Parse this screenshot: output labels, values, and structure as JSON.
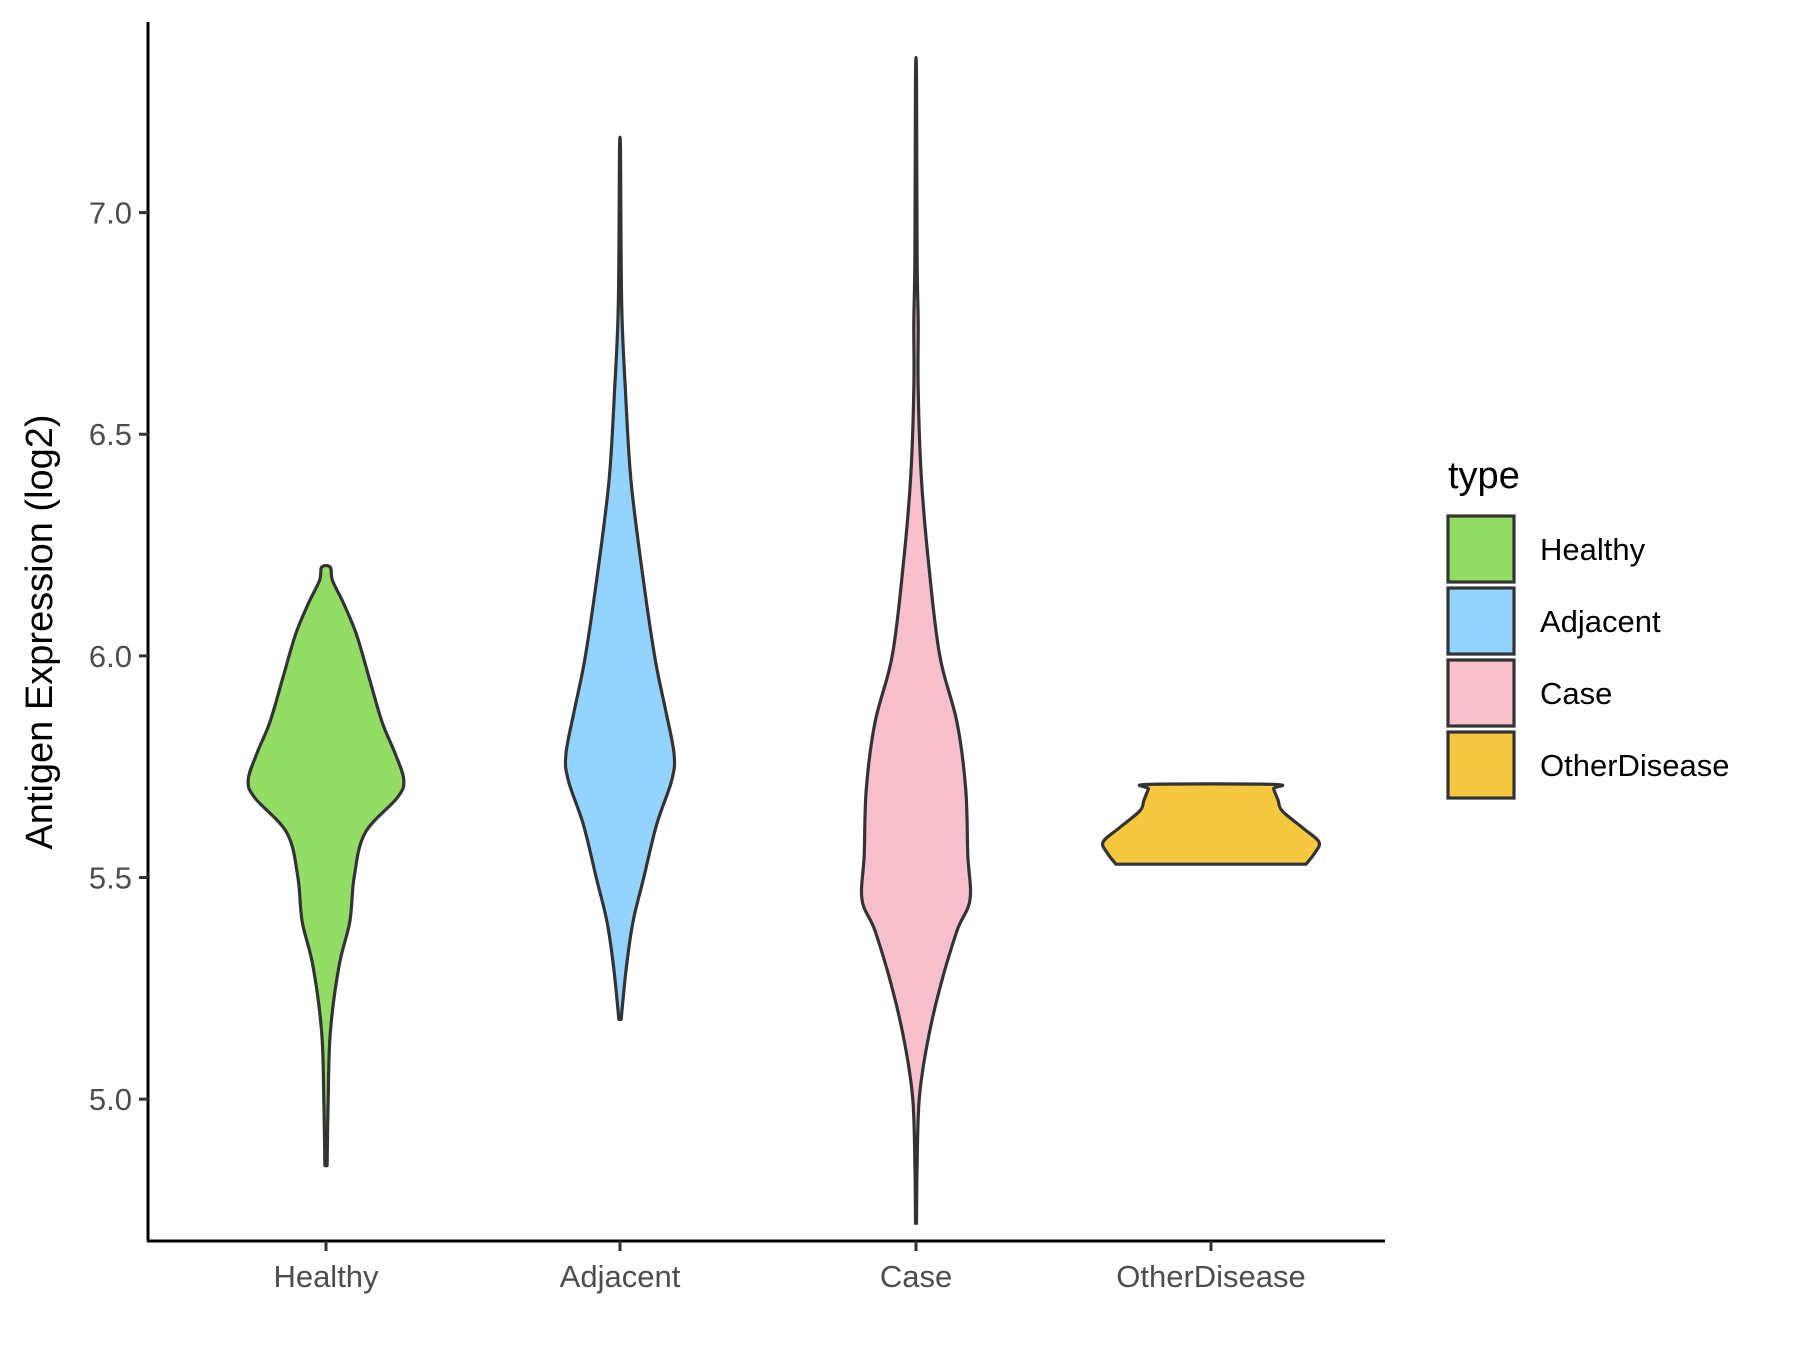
{
  "chart_data": {
    "type": "violin",
    "title": "",
    "xlabel": "",
    "ylabel": "Antigen Expression (log2)",
    "ylim": [
      4.68,
      7.43
    ],
    "yticks": [
      5.0,
      5.5,
      6.0,
      6.5,
      7.0
    ],
    "ytick_labels": [
      "5.0",
      "5.5",
      "6.0",
      "6.5",
      "7.0"
    ],
    "categories": [
      "Healthy",
      "Adjacent",
      "Case",
      "OtherDisease"
    ],
    "legend": {
      "title": "type",
      "position": "right",
      "entries": [
        "Healthy",
        "Adjacent",
        "Case",
        "OtherDisease"
      ]
    },
    "series": [
      {
        "name": "Healthy",
        "color": "#93dd67",
        "min": 4.85,
        "max": 6.2,
        "profile": [
          [
            4.85,
            0.01
          ],
          [
            5.0,
            0.02
          ],
          [
            5.15,
            0.04
          ],
          [
            5.3,
            0.12
          ],
          [
            5.4,
            0.22
          ],
          [
            5.5,
            0.26
          ],
          [
            5.6,
            0.36
          ],
          [
            5.68,
            0.66
          ],
          [
            5.72,
            0.72
          ],
          [
            5.78,
            0.64
          ],
          [
            5.85,
            0.52
          ],
          [
            5.95,
            0.4
          ],
          [
            6.05,
            0.28
          ],
          [
            6.12,
            0.16
          ],
          [
            6.17,
            0.06
          ],
          [
            6.2,
            0.04
          ]
        ]
      },
      {
        "name": "Adjacent",
        "color": "#93d3fe",
        "min": 5.18,
        "max": 7.14,
        "profile": [
          [
            5.18,
            0.01
          ],
          [
            5.3,
            0.06
          ],
          [
            5.4,
            0.12
          ],
          [
            5.5,
            0.22
          ],
          [
            5.62,
            0.34
          ],
          [
            5.72,
            0.48
          ],
          [
            5.78,
            0.5
          ],
          [
            5.88,
            0.42
          ],
          [
            6.0,
            0.32
          ],
          [
            6.2,
            0.2
          ],
          [
            6.4,
            0.1
          ],
          [
            6.6,
            0.05
          ],
          [
            6.75,
            0.02
          ],
          [
            6.9,
            0.01
          ],
          [
            7.14,
            0.005
          ]
        ]
      },
      {
        "name": "Case",
        "color": "#f8c0cc",
        "min": 4.72,
        "max": 7.3,
        "profile": [
          [
            4.72,
            0.005
          ],
          [
            4.85,
            0.01
          ],
          [
            5.0,
            0.03
          ],
          [
            5.12,
            0.1
          ],
          [
            5.25,
            0.22
          ],
          [
            5.38,
            0.38
          ],
          [
            5.45,
            0.5
          ],
          [
            5.55,
            0.48
          ],
          [
            5.7,
            0.46
          ],
          [
            5.85,
            0.38
          ],
          [
            6.0,
            0.22
          ],
          [
            6.2,
            0.12
          ],
          [
            6.4,
            0.05
          ],
          [
            6.6,
            0.02
          ],
          [
            6.75,
            0.02
          ],
          [
            6.9,
            0.01
          ],
          [
            7.3,
            0.005
          ]
        ]
      },
      {
        "name": "OtherDisease",
        "color": "#f5c840",
        "min": 5.53,
        "max": 5.71,
        "profile": [
          [
            5.53,
            0.88
          ],
          [
            5.555,
            0.96
          ],
          [
            5.58,
            1.0
          ],
          [
            5.61,
            0.86
          ],
          [
            5.65,
            0.66
          ],
          [
            5.675,
            0.62
          ],
          [
            5.7,
            0.58
          ],
          [
            5.71,
            0.58
          ]
        ]
      }
    ]
  }
}
